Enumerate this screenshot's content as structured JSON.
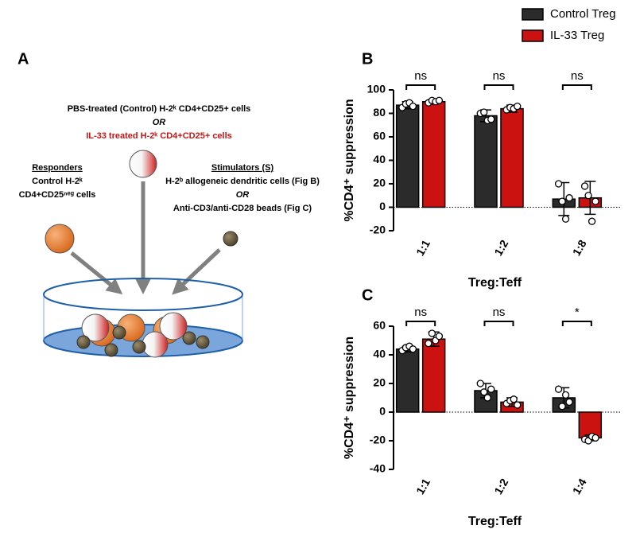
{
  "panel_a": {
    "label": "A",
    "treg_line1": "PBS-treated (Control) H-2ᵏ CD4+CD25+ cells",
    "treg_or": "OR",
    "treg_line2": "IL-33 treated H-2ᵏ CD4+CD25+ cells",
    "responders_title": "Responders",
    "responders_line1": "Control H-2ᵏ",
    "responders_line2": "CD4+CD25ⁿᵉᵍ cells",
    "stimulators_title": "Stimulators (S)",
    "stimulators_line1": "H-2ᵇ allogeneic dendritic cells (Fig B)",
    "stimulators_or": "OR",
    "stimulators_line2": "Anti-CD3/anti-CD28 beads (Fig C)"
  },
  "chart_data": [
    {
      "type": "bar",
      "title": "B",
      "x_label": "Treg:Teff",
      "y_label": "%CD4⁺ suppression",
      "categories": [
        "1:1",
        "1:2",
        "1:8"
      ],
      "series": [
        {
          "name": "Control Treg",
          "color": "#2b2b2b",
          "values": [
            87,
            78,
            7
          ],
          "errors": [
            3,
            5,
            14
          ],
          "points": [
            [
              85,
              88,
              89,
              86
            ],
            [
              80,
              81,
              74,
              75
            ],
            [
              20,
              5,
              -10,
              8
            ]
          ]
        },
        {
          "name": "IL-33 Treg",
          "color": "#cc1111",
          "values": [
            90,
            84,
            8
          ],
          "errors": [
            2,
            3,
            14
          ],
          "points": [
            [
              89,
              91,
              90,
              91
            ],
            [
              83,
              85,
              84,
              86
            ],
            [
              18,
              10,
              -12,
              5
            ]
          ]
        }
      ],
      "annotations": [
        "ns",
        "ns",
        "ns"
      ],
      "ylim": [
        -20,
        100
      ],
      "yticks": [
        -20,
        0,
        20,
        40,
        60,
        80,
        100
      ],
      "legend": "top-right"
    },
    {
      "type": "bar",
      "title": "C",
      "x_label": "Treg:Teff",
      "y_label": "%CD4⁺ suppression",
      "categories": [
        "1:1",
        "1:2",
        "1:4"
      ],
      "series": [
        {
          "name": "Control Treg",
          "color": "#2b2b2b",
          "values": [
            44,
            15,
            10
          ],
          "errors": [
            2,
            5,
            7
          ],
          "points": [
            [
              43,
              45,
              46,
              44
            ],
            [
              20,
              14,
              10,
              16
            ],
            [
              16,
              4,
              12,
              7
            ]
          ]
        },
        {
          "name": "IL-33 Treg",
          "color": "#cc1111",
          "values": [
            51,
            7,
            -18
          ],
          "errors": [
            5,
            3,
            2
          ],
          "points": [
            [
              48,
              55,
              50,
              53
            ],
            [
              6,
              8,
              9,
              5
            ],
            [
              -19,
              -20,
              -17,
              -18
            ]
          ]
        }
      ],
      "annotations": [
        "ns",
        "ns",
        "*"
      ],
      "ylim": [
        -40,
        60
      ],
      "yticks": [
        -40,
        -20,
        0,
        20,
        40,
        60
      ]
    }
  ]
}
